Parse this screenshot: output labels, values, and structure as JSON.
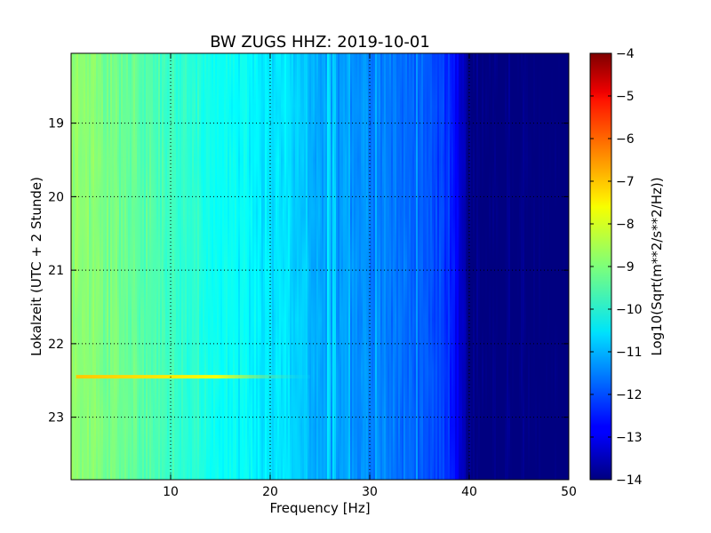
{
  "chart_data": {
    "type": "heatmap",
    "title": "BW ZUGS HHZ: 2019-10-01",
    "xlabel": "Frequency [Hz]",
    "ylabel": "Lokalzeit (UTC + 2 Stunde)",
    "xlim": [
      0,
      50
    ],
    "ylim": [
      18.05,
      23.85
    ],
    "y_inverted": true,
    "x_ticks": [
      10,
      20,
      30,
      40,
      50
    ],
    "y_ticks": [
      19,
      20,
      21,
      22,
      23
    ],
    "grid": true,
    "colormap": "jet",
    "colorbar": {
      "label": "Log10(Sqrt(m**2/s**2/Hz))",
      "range": [
        -14,
        -4
      ],
      "ticks": [
        -4,
        -5,
        -6,
        -7,
        -8,
        -9,
        -10,
        -11,
        -12,
        -13,
        -14
      ]
    },
    "spectrum_profile": {
      "frequency_hz": [
        0,
        5,
        10,
        15,
        20,
        22,
        25,
        30,
        35,
        38,
        39,
        40,
        50
      ],
      "log10_amplitude": [
        -8.8,
        -9.2,
        -9.6,
        -10.1,
        -10.5,
        -10.6,
        -11.1,
        -11.4,
        -11.8,
        -12.3,
        -13.0,
        -14.0,
        -14.0
      ]
    },
    "annotations": [
      {
        "feature": "narrowband transient",
        "time": 22.45,
        "freq_range_hz": [
          0.5,
          24
        ],
        "log10_amplitude": -7.2
      }
    ]
  }
}
